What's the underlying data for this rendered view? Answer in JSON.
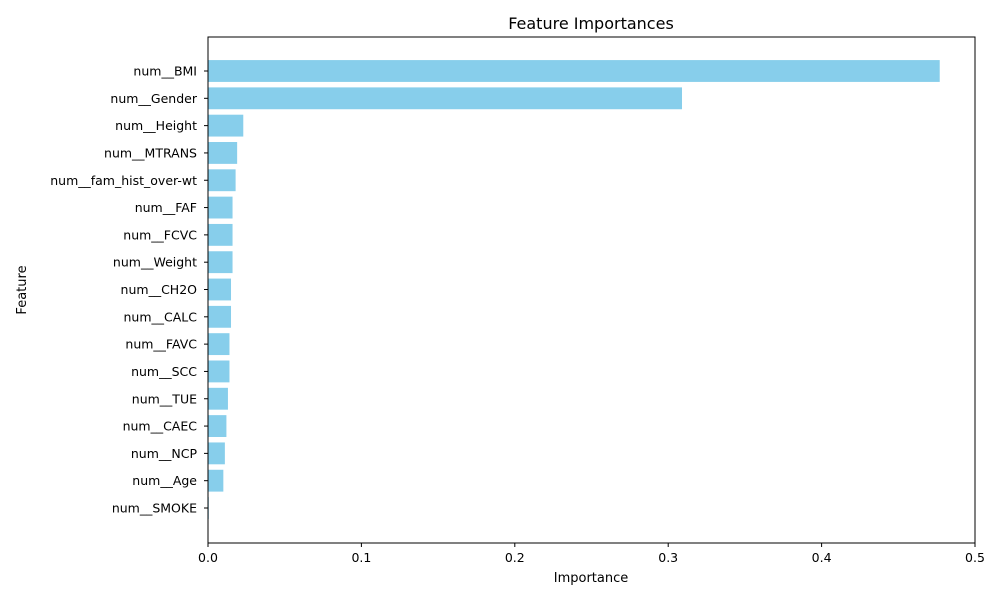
{
  "chart_data": {
    "type": "bar",
    "orientation": "horizontal",
    "title": "Feature Importances",
    "xlabel": "Importance",
    "ylabel": "Feature",
    "xlim": [
      0,
      0.5
    ],
    "xticks": [
      "0.0",
      "0.1",
      "0.2",
      "0.3",
      "0.4",
      "0.5"
    ],
    "bar_color": "#87CEEB",
    "categories": [
      "num__BMI",
      "num__Gender",
      "num__Height",
      "num__MTRANS",
      "num__fam_hist_over-wt",
      "num__FAF",
      "num__FCVC",
      "num__Weight",
      "num__CH2O",
      "num__CALC",
      "num__FAVC",
      "num__SCC",
      "num__TUE",
      "num__CAEC",
      "num__NCP",
      "num__Age",
      "num__SMOKE"
    ],
    "values": [
      0.477,
      0.309,
      0.023,
      0.019,
      0.018,
      0.016,
      0.016,
      0.016,
      0.015,
      0.015,
      0.014,
      0.014,
      0.013,
      0.012,
      0.011,
      0.01,
      0.0005
    ],
    "grid": false,
    "legend": false
  }
}
